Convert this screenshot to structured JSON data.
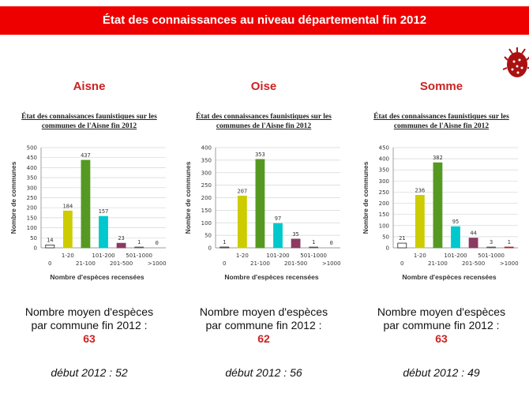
{
  "banner": {
    "title": "État des connaissances au niveau départemental fin 2012"
  },
  "common": {
    "chart_title_line1": "État des connaissances faunistiques sur les",
    "chart_title_line2": "communes de l'Aisne fin 2012",
    "avg_line1": "Nombre moyen d'espèces",
    "avg_line2": "par commune fin 2012 :"
  },
  "colors": {
    "banner": "#ee0000",
    "dept": "#cc2222"
  },
  "panels": [
    {
      "department": "Aisne",
      "average": "63",
      "start_label": "début 2012 : 52"
    },
    {
      "department": "Oise",
      "average": "62",
      "start_label": "début 2012 : 56"
    },
    {
      "department": "Somme",
      "average": "63",
      "start_label": "début 2012 : 49"
    }
  ],
  "chart_data": [
    {
      "type": "bar",
      "title": "État des connaissances faunistiques sur les communes de l'Aisne fin 2012",
      "xlabel": "Nombre d'espèces recensées",
      "ylabel": "Nombre de communes",
      "categories": [
        "0",
        "1-20",
        "21-100",
        "101-200",
        "201-500",
        "501-1000",
        ">1000"
      ],
      "values": [
        14,
        184,
        437,
        157,
        23,
        1,
        0
      ],
      "ylim": [
        0,
        500
      ],
      "yticks": [
        0,
        50,
        100,
        150,
        200,
        250,
        300,
        350,
        400,
        450,
        500
      ],
      "colors": [
        "#ffffff",
        "#cccc00",
        "#559922",
        "#00c8cc",
        "#8b3a62",
        "#555555",
        "#555555"
      ]
    },
    {
      "type": "bar",
      "title": "État des connaissances faunistiques sur les communes de l'Aisne fin 2012",
      "xlabel": "Nombre d'espèces recensées",
      "ylabel": "Nombre de communes",
      "categories": [
        "0",
        "1-20",
        "21-100",
        "101-200",
        "201-500",
        "501-1000",
        ">1000"
      ],
      "values": [
        1,
        207,
        353,
        97,
        35,
        1,
        0
      ],
      "ylim": [
        0,
        400
      ],
      "yticks": [
        0,
        50,
        100,
        150,
        200,
        250,
        300,
        350,
        400
      ],
      "colors": [
        "#ffffff",
        "#cccc00",
        "#559922",
        "#00c8cc",
        "#8b3a62",
        "#555555",
        "#555555"
      ]
    },
    {
      "type": "bar",
      "title": "État des connaissances faunistiques sur les communes de l'Aisne fin 2012",
      "xlabel": "Nombre d'espèces recensées",
      "ylabel": "Nombre de communes",
      "categories": [
        "0",
        "1-20",
        "21-100",
        "101-200",
        "201-500",
        "501-1000",
        ">1000"
      ],
      "values": [
        21,
        236,
        382,
        95,
        44,
        3,
        1
      ],
      "ylim": [
        0,
        450
      ],
      "yticks": [
        0,
        50,
        100,
        150,
        200,
        250,
        300,
        350,
        400,
        450
      ],
      "colors": [
        "#ffffff",
        "#cccc00",
        "#559922",
        "#00c8cc",
        "#8b3a62",
        "#555555",
        "#aa2222"
      ]
    }
  ]
}
